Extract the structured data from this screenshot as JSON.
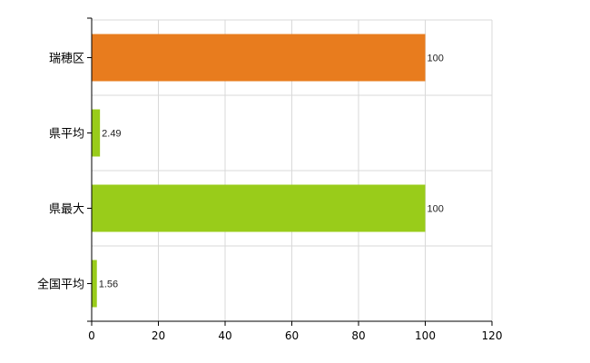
{
  "chart_data": {
    "type": "bar",
    "orientation": "horizontal",
    "title": "",
    "xlabel": "",
    "ylabel": "",
    "categories": [
      "瑞穂区",
      "県平均",
      "県最大",
      "全国平均"
    ],
    "values": [
      100,
      2.49,
      100,
      1.56
    ],
    "value_labels": [
      "100",
      "2.49",
      "100",
      "1.56"
    ],
    "bar_colors": [
      "#e87c1e",
      "#99cc1a",
      "#99cc1a",
      "#99cc1a"
    ],
    "xlim": [
      0,
      120
    ],
    "xticks": [
      0,
      20,
      40,
      60,
      80,
      100,
      120
    ],
    "grid": true,
    "legend": "none"
  }
}
